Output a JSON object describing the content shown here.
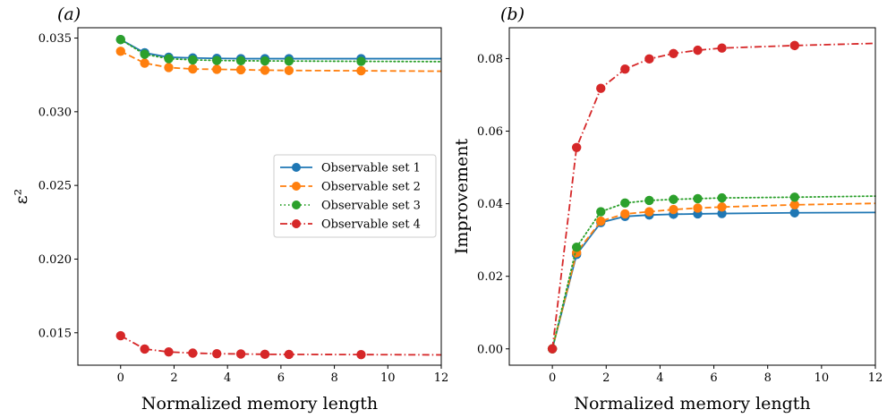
{
  "chart_data": [
    {
      "type": "line",
      "panel_label": "(a)",
      "xlabel": "Normalized memory length",
      "ylabel": "ε²",
      "xlim": [
        -1.6,
        12
      ],
      "ylim": [
        0.0128,
        0.0357
      ],
      "xticks": [
        0,
        2,
        4,
        6,
        8,
        10,
        12
      ],
      "yticks": [
        0.015,
        0.02,
        0.025,
        0.03,
        0.035
      ],
      "ytick_labels": [
        "0.015",
        "0.020",
        "0.025",
        "0.030",
        "0.035"
      ],
      "grid": false,
      "legend_position": "center-right",
      "series": [
        {
          "name": "Observable set 1",
          "color": "#1f77b4",
          "linestyle": "solid",
          "x": [
            0,
            0.9,
            1.8,
            2.7,
            3.6,
            4.5,
            5.4,
            6.3,
            9.0
          ],
          "y": [
            0.0349,
            0.034,
            0.0337,
            0.03365,
            0.03362,
            0.0336,
            0.0336,
            0.0336,
            0.0336
          ],
          "line_end": [
            12,
            0.0336
          ]
        },
        {
          "name": "Observable set 2",
          "color": "#ff7f0e",
          "linestyle": "dashed",
          "x": [
            0,
            0.9,
            1.8,
            2.7,
            3.6,
            4.5,
            5.4,
            6.3,
            9.0
          ],
          "y": [
            0.0341,
            0.0333,
            0.033,
            0.0329,
            0.03288,
            0.03285,
            0.03282,
            0.0328,
            0.03278
          ],
          "line_end": [
            12,
            0.03275
          ]
        },
        {
          "name": "Observable set 3",
          "color": "#2ca02c",
          "linestyle": "dotted",
          "x": [
            0,
            0.9,
            1.8,
            2.7,
            3.6,
            4.5,
            5.4,
            6.3,
            9.0
          ],
          "y": [
            0.0349,
            0.0339,
            0.0336,
            0.03352,
            0.03348,
            0.03346,
            0.03345,
            0.03344,
            0.03342
          ],
          "line_end": [
            12,
            0.0334
          ]
        },
        {
          "name": "Observable set 4",
          "color": "#d62728",
          "linestyle": "dashdot",
          "x": [
            0,
            0.9,
            1.8,
            2.7,
            3.6,
            4.5,
            5.4,
            6.3,
            9.0
          ],
          "y": [
            0.0148,
            0.0139,
            0.0137,
            0.01362,
            0.01358,
            0.01356,
            0.01354,
            0.01353,
            0.01352
          ],
          "line_end": [
            12,
            0.0135
          ]
        }
      ]
    },
    {
      "type": "line",
      "panel_label": "(b)",
      "xlabel": "Normalized memory length",
      "ylabel": "Improvement",
      "xlim": [
        -1.6,
        12
      ],
      "ylim": [
        -0.0045,
        0.0885
      ],
      "xticks": [
        0,
        2,
        4,
        6,
        8,
        10,
        12
      ],
      "yticks": [
        0.0,
        0.02,
        0.04,
        0.06,
        0.08
      ],
      "ytick_labels": [
        "0.00",
        "0.02",
        "0.04",
        "0.06",
        "0.08"
      ],
      "grid": false,
      "series": [
        {
          "name": "Observable set 1",
          "color": "#1f77b4",
          "linestyle": "solid",
          "x": [
            0,
            0.9,
            1.8,
            2.7,
            3.6,
            4.5,
            5.4,
            6.3,
            9.0
          ],
          "y": [
            0.0,
            0.026,
            0.0348,
            0.0365,
            0.0369,
            0.0371,
            0.0372,
            0.0373,
            0.0375
          ],
          "line_end": [
            12,
            0.0376
          ]
        },
        {
          "name": "Observable set 2",
          "color": "#ff7f0e",
          "linestyle": "dashed",
          "x": [
            0,
            0.9,
            1.8,
            2.7,
            3.6,
            4.5,
            5.4,
            6.3,
            9.0
          ],
          "y": [
            0.0,
            0.0265,
            0.0352,
            0.0372,
            0.0378,
            0.0384,
            0.0388,
            0.0391,
            0.0397
          ],
          "line_end": [
            12,
            0.0401
          ]
        },
        {
          "name": "Observable set 3",
          "color": "#2ca02c",
          "linestyle": "dotted",
          "x": [
            0,
            0.9,
            1.8,
            2.7,
            3.6,
            4.5,
            5.4,
            6.3,
            9.0
          ],
          "y": [
            0.0,
            0.028,
            0.0378,
            0.0402,
            0.0409,
            0.0412,
            0.0414,
            0.0416,
            0.0418
          ],
          "line_end": [
            12,
            0.0421
          ]
        },
        {
          "name": "Observable set 4",
          "color": "#d62728",
          "linestyle": "dashdot",
          "x": [
            0,
            0.9,
            1.8,
            2.7,
            3.6,
            4.5,
            5.4,
            6.3,
            9.0
          ],
          "y": [
            0.0,
            0.0555,
            0.0718,
            0.0771,
            0.0799,
            0.0814,
            0.0823,
            0.0829,
            0.0836
          ],
          "line_end": [
            12,
            0.0842
          ]
        }
      ]
    }
  ]
}
